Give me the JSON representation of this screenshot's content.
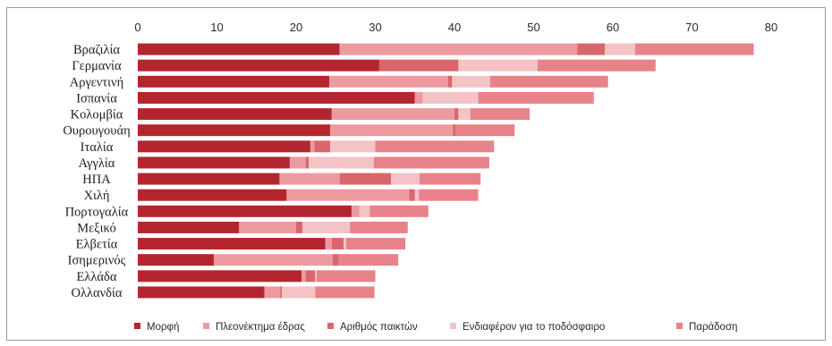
{
  "chart_data": {
    "type": "bar",
    "orientation": "horizontal",
    "stacked": true,
    "categories": [
      "Βραζιλία",
      "Γερμανία",
      "Αργεντινή",
      "Ισπανία",
      "Κολομβία",
      "Ουρουγουάη",
      "Ιταλία",
      "Αγγλία",
      "ΗΠΑ",
      "Χιλή",
      "Πορτογαλία",
      "Μεξικό",
      "Ελβετία",
      "Ισημερινός",
      "Ελλάδα",
      "Ολλανδία"
    ],
    "series": [
      {
        "name": "Μορφή",
        "color": "#b3262f",
        "values": [
          25.5,
          30.5,
          24.2,
          35.0,
          24.5,
          24.3,
          21.8,
          19.2,
          17.9,
          18.8,
          27.0,
          12.8,
          23.7,
          9.6,
          20.7,
          16.0
        ]
      },
      {
        "name": "Πλεονέκτημα έδρας",
        "color": "#ec9aa0",
        "values": [
          30.0,
          0.0,
          15.0,
          1.0,
          15.5,
          15.5,
          0.5,
          2.0,
          7.6,
          15.5,
          1.0,
          7.2,
          0.8,
          15.0,
          0.5,
          2.0
        ]
      },
      {
        "name": "Αριθμός παικτών",
        "color": "#d9666c",
        "values": [
          3.5,
          10.0,
          0.5,
          0.0,
          0.5,
          0.4,
          2.0,
          0.4,
          6.5,
          0.7,
          0.0,
          0.8,
          1.5,
          0.8,
          1.2,
          0.2
        ]
      },
      {
        "name": "Ενδιαφέρον για το ποδόσφαιρο",
        "color": "#f4c3c6",
        "values": [
          3.8,
          10.0,
          4.8,
          7.0,
          1.5,
          0.0,
          5.7,
          8.2,
          3.6,
          0.5,
          1.3,
          6.0,
          0.3,
          0.0,
          0.2,
          4.2
        ]
      },
      {
        "name": "Παράδοση",
        "color": "#e88289",
        "values": [
          15.0,
          14.9,
          14.9,
          14.6,
          7.5,
          7.4,
          15.0,
          14.6,
          7.7,
          7.5,
          7.4,
          7.3,
          7.5,
          7.5,
          7.4,
          7.5
        ]
      }
    ],
    "xlim": [
      0,
      80
    ],
    "xticks": [
      0,
      10,
      20,
      30,
      40,
      50,
      60,
      70,
      80
    ],
    "grid": false,
    "legend_position": "bottom"
  }
}
